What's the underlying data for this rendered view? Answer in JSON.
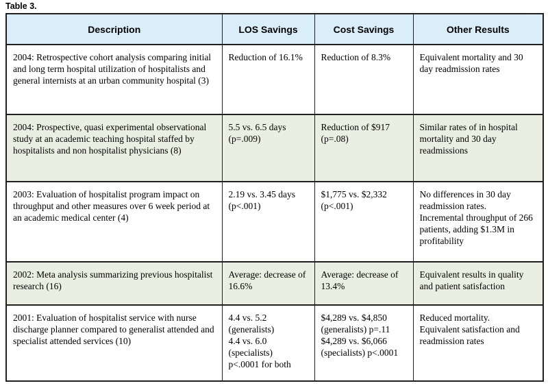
{
  "title": "Table 3.",
  "colors": {
    "header_bg": "#d9eef8",
    "row_bg": "#ffffff",
    "row_alt_bg": "#ebefe1",
    "border": "#1f1f1f",
    "text": "#000000"
  },
  "table": {
    "columns": [
      {
        "label": "Description"
      },
      {
        "label": "LOS Savings"
      },
      {
        "label": "Cost Savings"
      },
      {
        "label": "Other Results"
      }
    ],
    "rows": [
      {
        "description": "2004: Retrospective cohort analysis comparing initial and long term hospital utilization of hospitalists and general internists at an urban community hospital (3)",
        "los": "Reduction of 16.1%",
        "cost": "Reduction of 8.3%",
        "other": "Equivalent mortality and 30 day readmission rates"
      },
      {
        "description": "2004: Prospective, quasi experimental observational study at an academic teaching hospital staffed by hospitalists and non hospitalist physicians (8)",
        "los": "5.5 vs. 6.5 days\n(p=.009)",
        "cost": "Reduction of $917\n(p=.08)",
        "other": "Similar rates of in hospital mortality and 30 day readmissions"
      },
      {
        "description": "2003: Evaluation of hospitalist program impact on throughput and other measures over 6 week period at an academic medical center (4)",
        "los": "2.19 vs. 3.45 days\n(p<.001)",
        "cost": "$1,775 vs. $2,332\n(p<.001)",
        "other": "No differences in 30 day readmission rates.\nIncremental throughput of 266 patients, adding $1.3M in profitability"
      },
      {
        "description": "2002: Meta analysis summarizing previous hospitalist research (16)",
        "los": "Average: decrease of 16.6%",
        "cost": "Average: decrease of 13.4%",
        "other": "Equivalent results in quality and patient satisfaction"
      },
      {
        "description": "2001: Evaluation of hospitalist service with nurse discharge planner compared to generalist attended and specialist attended services (10)",
        "los": "4.4 vs. 5.2\n(generalists)\n4.4 vs. 6.0\n(specialists)\np<.0001 for both",
        "cost": "$4,289 vs. $4,850\n(generalists) p=.11\n$4,289 vs. $6,066\n(specialists) p<.0001",
        "other": "Reduced mortality.\nEquivalent satisfaction and readmission rates"
      }
    ]
  }
}
